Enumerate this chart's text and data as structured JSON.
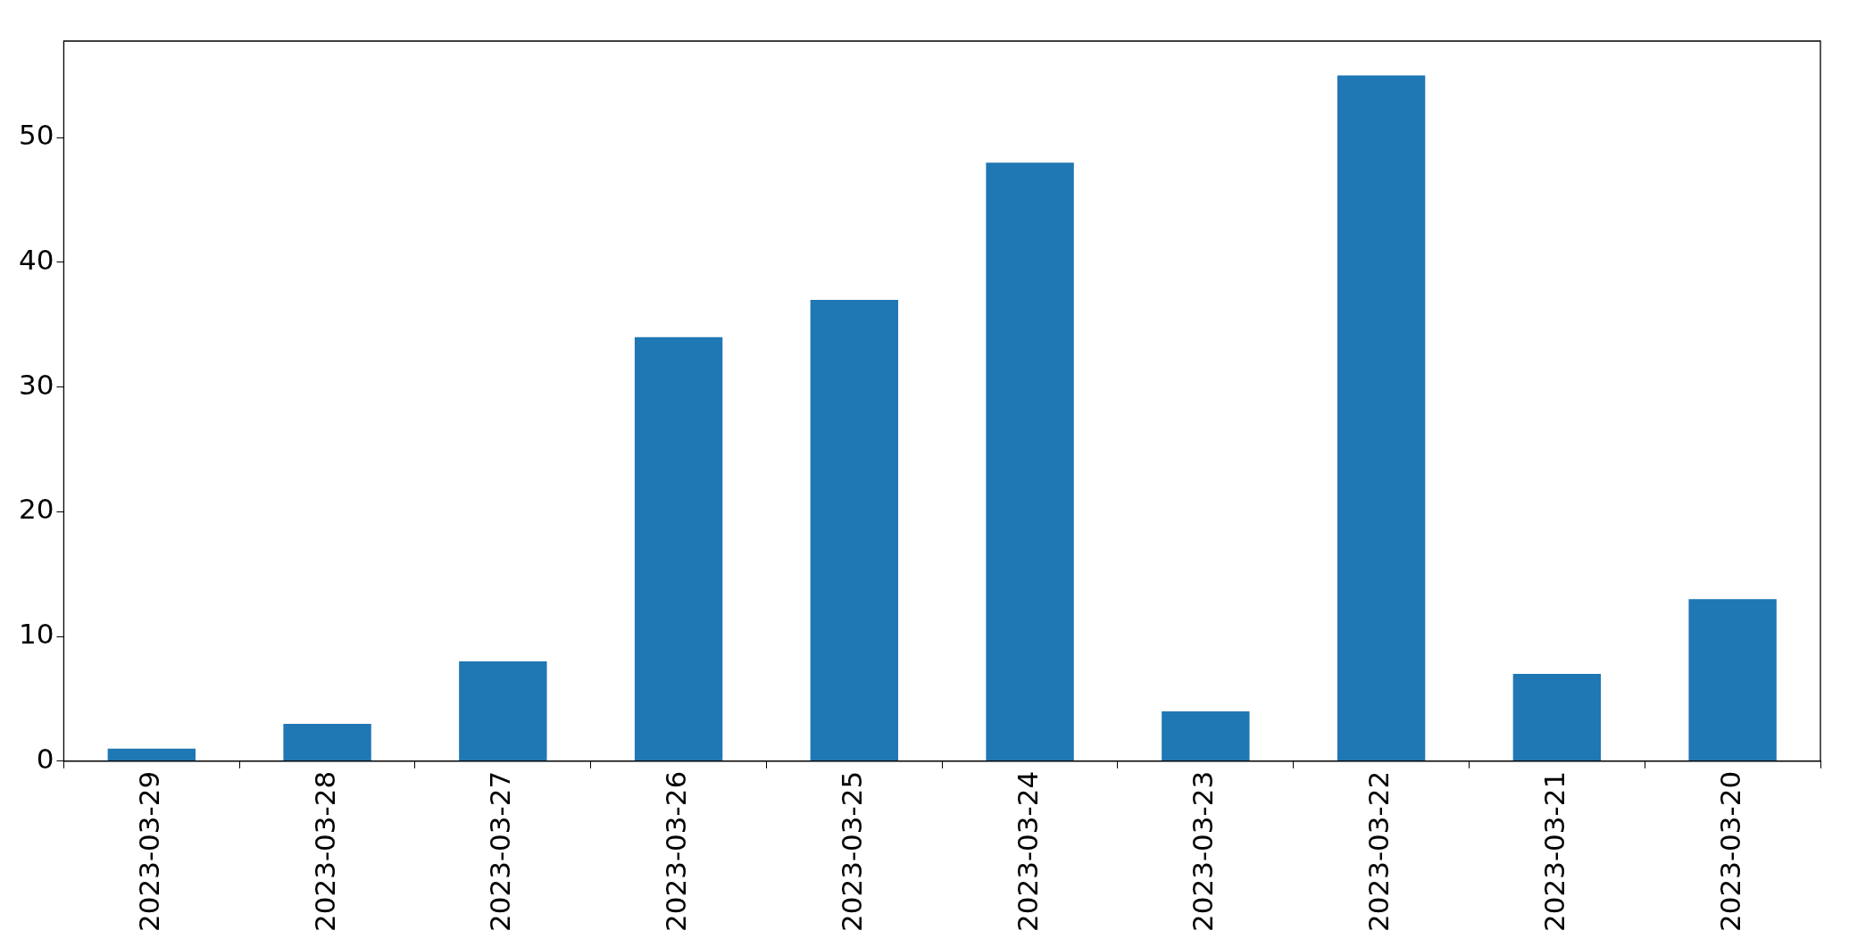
{
  "chart_data": {
    "type": "bar",
    "categories": [
      "2023-03-29",
      "2023-03-28",
      "2023-03-27",
      "2023-03-26",
      "2023-03-25",
      "2023-03-24",
      "2023-03-23",
      "2023-03-22",
      "2023-03-21",
      "2023-03-20"
    ],
    "values": [
      1,
      3,
      8,
      34,
      37,
      48,
      4,
      55,
      7,
      13
    ],
    "color": "#1f77b4",
    "ylim": [
      0,
      57.75
    ],
    "yticks": [
      0,
      10,
      20,
      30,
      40,
      50
    ]
  }
}
